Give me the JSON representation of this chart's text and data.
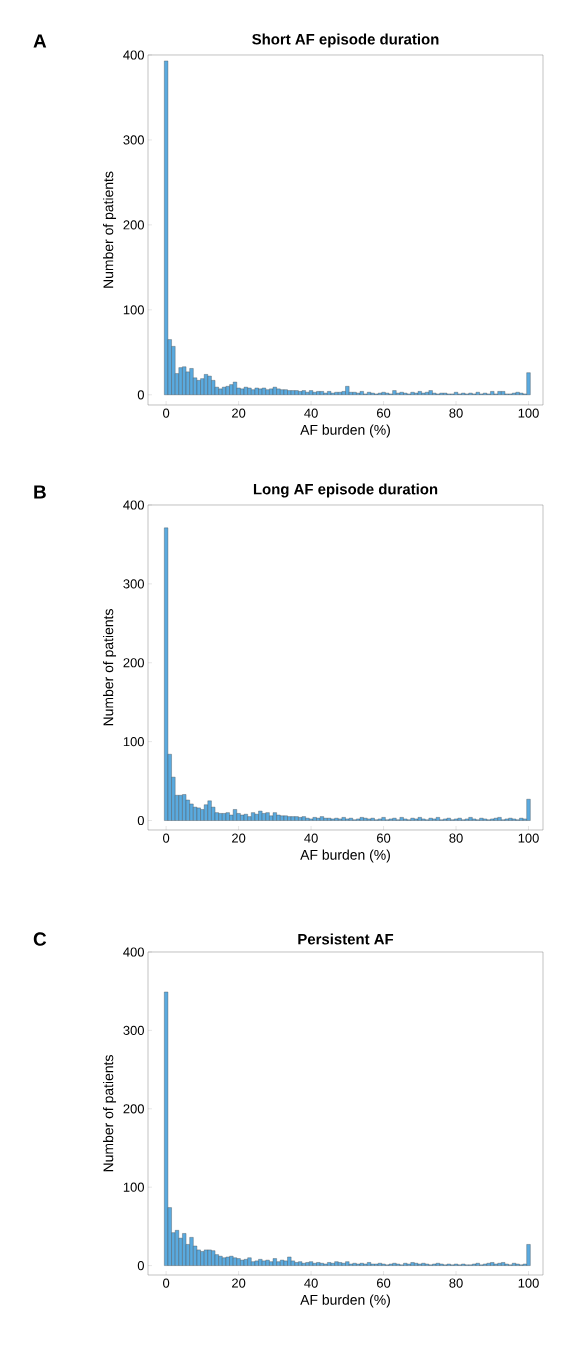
{
  "chart_data": [
    {
      "type": "histogram",
      "title": "Short AF episode duration",
      "xlabel": "AF burden (%)",
      "ylabel": "Number of patients",
      "annotations": [
        "A"
      ],
      "color": "#5aaadf",
      "bins": [
        -0.5,
        0.5,
        1.5,
        2.5,
        3.5,
        4.5,
        5.5,
        6.5,
        7.5,
        8.5,
        9.5,
        10.5,
        11.5,
        12.5,
        13.5,
        14.5,
        15.5,
        16.5,
        17.5,
        18.5,
        19.5,
        20.5,
        21.5,
        22.5,
        23.5,
        24.5,
        25.5,
        26.5,
        27.5,
        28.5,
        29.5,
        30.5,
        31.5,
        32.5,
        33.5,
        34.5,
        35.5,
        36.5,
        37.5,
        38.5,
        39.5,
        40.5,
        41.5,
        42.5,
        43.5,
        44.5,
        45.5,
        46.5,
        47.5,
        48.5,
        49.5,
        50.5,
        51.5,
        52.5,
        53.5,
        54.5,
        55.5,
        56.5,
        57.5,
        58.5,
        59.5,
        60.5,
        61.5,
        62.5,
        63.5,
        64.5,
        65.5,
        66.5,
        67.5,
        68.5,
        69.5,
        70.5,
        71.5,
        72.5,
        73.5,
        74.5,
        75.5,
        76.5,
        77.5,
        78.5,
        79.5,
        80.5,
        81.5,
        82.5,
        83.5,
        84.5,
        85.5,
        86.5,
        87.5,
        88.5,
        89.5,
        90.5,
        91.5,
        92.5,
        93.5,
        94.5,
        95.5,
        96.5,
        97.5,
        98.5,
        99.5,
        100.5
      ],
      "values": [
        393,
        65,
        57,
        25,
        32,
        33,
        27,
        31,
        20,
        17,
        19,
        24,
        22,
        17,
        9,
        7,
        9,
        10,
        12,
        15,
        8,
        7,
        9,
        8,
        6,
        8,
        7,
        8,
        6,
        7,
        9,
        7,
        6,
        6,
        5,
        5,
        5,
        4,
        5,
        3,
        5,
        3,
        4,
        4,
        2,
        4,
        2,
        3,
        3,
        4,
        10,
        3,
        3,
        2,
        4,
        1,
        3,
        2,
        1,
        2,
        3,
        2,
        1,
        5,
        2,
        3,
        2,
        1,
        3,
        2,
        4,
        2,
        3,
        5,
        2,
        1,
        2,
        2,
        1,
        1,
        3,
        1,
        2,
        1,
        2,
        1,
        3,
        1,
        2,
        1,
        4,
        1,
        4,
        4,
        1,
        1,
        2,
        3,
        2,
        1,
        26
      ],
      "xlim": [
        -5,
        104
      ],
      "ylim": [
        -12,
        400
      ],
      "xticks": [
        0,
        20,
        40,
        60,
        80,
        100
      ],
      "yticks": [
        0,
        100,
        200,
        300,
        400
      ]
    },
    {
      "type": "histogram",
      "title": "Long AF episode duration",
      "xlabel": "AF burden (%)",
      "ylabel": "Number of patients",
      "annotations": [
        "B"
      ],
      "color": "#5aaadf",
      "bins": [
        -0.5,
        0.5,
        1.5,
        2.5,
        3.5,
        4.5,
        5.5,
        6.5,
        7.5,
        8.5,
        9.5,
        10.5,
        11.5,
        12.5,
        13.5,
        14.5,
        15.5,
        16.5,
        17.5,
        18.5,
        19.5,
        20.5,
        21.5,
        22.5,
        23.5,
        24.5,
        25.5,
        26.5,
        27.5,
        28.5,
        29.5,
        30.5,
        31.5,
        32.5,
        33.5,
        34.5,
        35.5,
        36.5,
        37.5,
        38.5,
        39.5,
        40.5,
        41.5,
        42.5,
        43.5,
        44.5,
        45.5,
        46.5,
        47.5,
        48.5,
        49.5,
        50.5,
        51.5,
        52.5,
        53.5,
        54.5,
        55.5,
        56.5,
        57.5,
        58.5,
        59.5,
        60.5,
        61.5,
        62.5,
        63.5,
        64.5,
        65.5,
        66.5,
        67.5,
        68.5,
        69.5,
        70.5,
        71.5,
        72.5,
        73.5,
        74.5,
        75.5,
        76.5,
        77.5,
        78.5,
        79.5,
        80.5,
        81.5,
        82.5,
        83.5,
        84.5,
        85.5,
        86.5,
        87.5,
        88.5,
        89.5,
        90.5,
        91.5,
        92.5,
        93.5,
        94.5,
        95.5,
        96.5,
        97.5,
        98.5,
        99.5,
        100.5
      ],
      "values": [
        371,
        84,
        55,
        32,
        32,
        33,
        26,
        21,
        17,
        16,
        14,
        20,
        25,
        17,
        10,
        9,
        9,
        10,
        7,
        14,
        9,
        7,
        8,
        5,
        10,
        8,
        12,
        9,
        10,
        6,
        10,
        7,
        6,
        6,
        5,
        5,
        5,
        4,
        5,
        3,
        2,
        4,
        3,
        5,
        3,
        3,
        2,
        3,
        2,
        4,
        2,
        3,
        1,
        2,
        4,
        3,
        2,
        3,
        1,
        2,
        4,
        1,
        2,
        3,
        1,
        4,
        2,
        1,
        3,
        2,
        4,
        2,
        1,
        3,
        2,
        4,
        1,
        2,
        3,
        1,
        2,
        3,
        1,
        2,
        4,
        2,
        1,
        3,
        2,
        1,
        2,
        3,
        4,
        1,
        2,
        3,
        2,
        1,
        3,
        2,
        27
      ],
      "xlim": [
        -5,
        104
      ],
      "ylim": [
        -12,
        400
      ],
      "xticks": [
        0,
        20,
        40,
        60,
        80,
        100
      ],
      "yticks": [
        0,
        100,
        200,
        300,
        400
      ]
    },
    {
      "type": "histogram",
      "title": "Persistent AF",
      "xlabel": "AF burden (%)",
      "ylabel": "Number of patients",
      "annotations": [
        "C"
      ],
      "color": "#5aaadf",
      "bins": [
        -0.5,
        0.5,
        1.5,
        2.5,
        3.5,
        4.5,
        5.5,
        6.5,
        7.5,
        8.5,
        9.5,
        10.5,
        11.5,
        12.5,
        13.5,
        14.5,
        15.5,
        16.5,
        17.5,
        18.5,
        19.5,
        20.5,
        21.5,
        22.5,
        23.5,
        24.5,
        25.5,
        26.5,
        27.5,
        28.5,
        29.5,
        30.5,
        31.5,
        32.5,
        33.5,
        34.5,
        35.5,
        36.5,
        37.5,
        38.5,
        39.5,
        40.5,
        41.5,
        42.5,
        43.5,
        44.5,
        45.5,
        46.5,
        47.5,
        48.5,
        49.5,
        50.5,
        51.5,
        52.5,
        53.5,
        54.5,
        55.5,
        56.5,
        57.5,
        58.5,
        59.5,
        60.5,
        61.5,
        62.5,
        63.5,
        64.5,
        65.5,
        66.5,
        67.5,
        68.5,
        69.5,
        70.5,
        71.5,
        72.5,
        73.5,
        74.5,
        75.5,
        76.5,
        77.5,
        78.5,
        79.5,
        80.5,
        81.5,
        82.5,
        83.5,
        84.5,
        85.5,
        86.5,
        87.5,
        88.5,
        89.5,
        90.5,
        91.5,
        92.5,
        93.5,
        94.5,
        95.5,
        96.5,
        97.5,
        98.5,
        99.5,
        100.5
      ],
      "values": [
        349,
        74,
        42,
        45,
        35,
        41,
        27,
        36,
        25,
        20,
        18,
        20,
        20,
        19,
        14,
        12,
        10,
        11,
        12,
        10,
        9,
        7,
        8,
        10,
        5,
        6,
        8,
        6,
        7,
        5,
        9,
        5,
        7,
        6,
        11,
        6,
        4,
        5,
        3,
        4,
        5,
        3,
        4,
        3,
        2,
        4,
        3,
        5,
        4,
        3,
        5,
        2,
        3,
        2,
        3,
        2,
        4,
        2,
        2,
        3,
        2,
        1,
        2,
        3,
        2,
        1,
        3,
        2,
        4,
        3,
        2,
        3,
        2,
        1,
        2,
        3,
        2,
        1,
        2,
        1,
        2,
        1,
        2,
        1,
        1,
        2,
        3,
        1,
        2,
        3,
        4,
        2,
        3,
        4,
        2,
        1,
        3,
        2,
        1,
        2,
        27
      ],
      "xlim": [
        -5,
        104
      ],
      "ylim": [
        -12,
        400
      ],
      "xticks": [
        0,
        20,
        40,
        60,
        80,
        100
      ],
      "yticks": [
        0,
        100,
        200,
        300,
        400
      ]
    }
  ]
}
